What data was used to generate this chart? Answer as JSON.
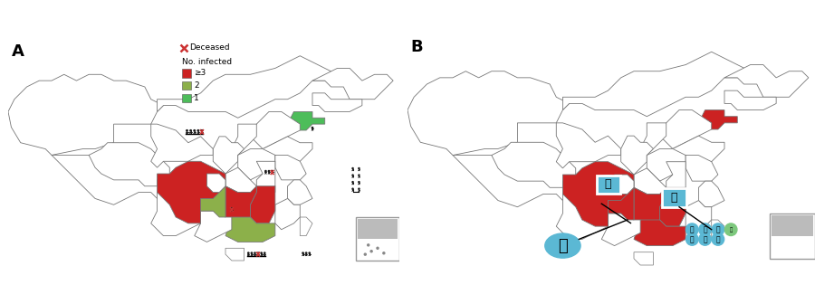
{
  "title_A": "A",
  "title_B": "B",
  "legend_deceased": "Deceased",
  "legend_no_infected": "No. infected",
  "legend_ge3": "≥3",
  "legend_2": "2",
  "legend_1": "1",
  "color_ge3": "#CC2222",
  "color_2": "#8CB04A",
  "color_1": "#4DBD5A",
  "color_border": "#777777",
  "color_map_bg": "#FFFFFF",
  "color_red_province": "#CC2222",
  "color_inset_bg": "#CCCCCC",
  "bg_color": "#FFFFFF",
  "person_icon_color": "#1A1A1A",
  "deceased_color": "#CC3333",
  "bird_icon_color": "#1A1A1A",
  "circle_color": "#5BB8D4",
  "green_circle_color": "#7DC87D"
}
